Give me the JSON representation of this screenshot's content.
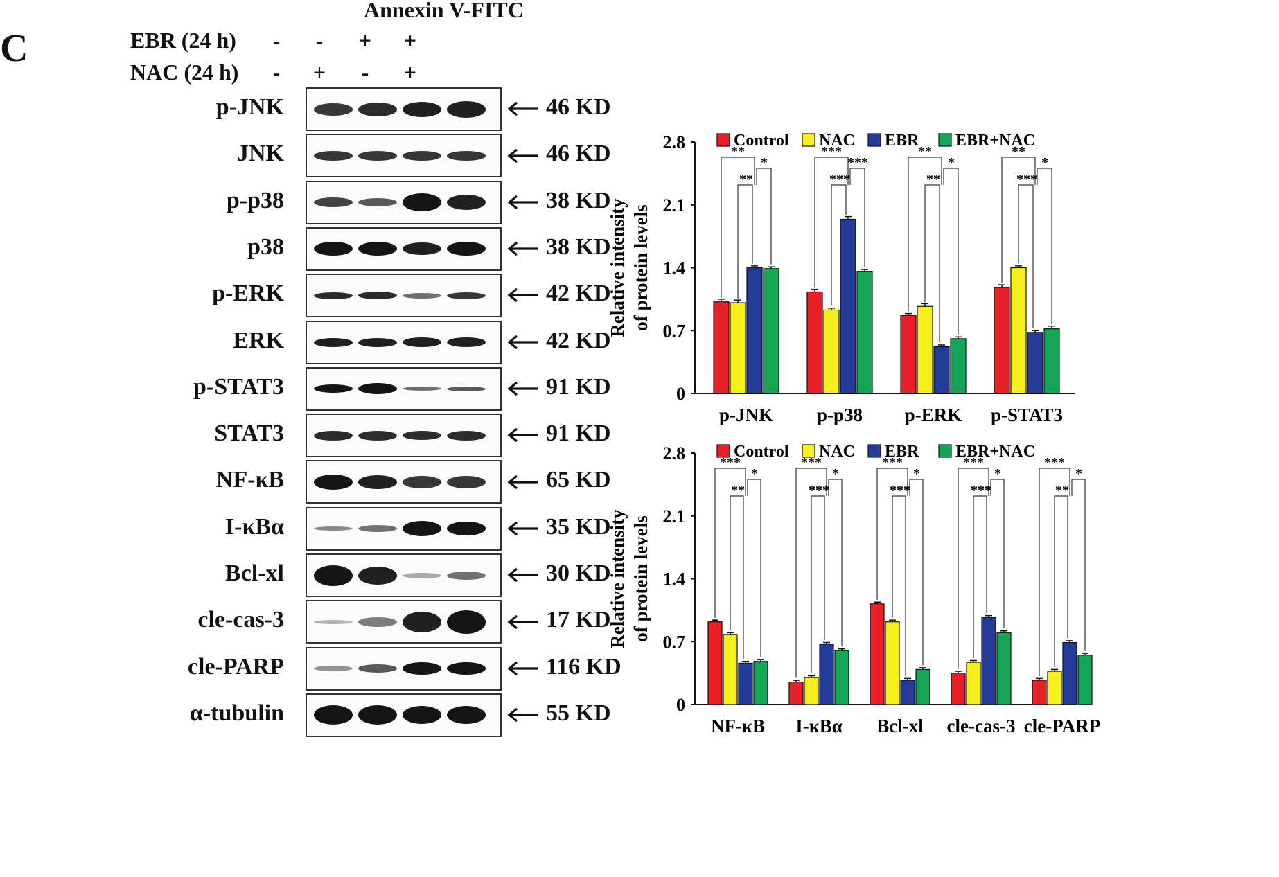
{
  "panel_label": "C",
  "blot": {
    "title": "Annexin V-FITC",
    "conditions": [
      {
        "label": "EBR  (24 h)",
        "signs": [
          "-",
          "-",
          "+",
          "+"
        ]
      },
      {
        "label": "NAC  (24 h)",
        "signs": [
          "-",
          "+",
          "-",
          "+"
        ]
      }
    ],
    "rows": [
      {
        "protein": "p-JNK",
        "mw": "46 KD"
      },
      {
        "protein": "JNK",
        "mw": "46 KD"
      },
      {
        "protein": "p-p38",
        "mw": "38 KD"
      },
      {
        "protein": "p38",
        "mw": "38 KD"
      },
      {
        "protein": "p-ERK",
        "mw": "42 KD"
      },
      {
        "protein": "ERK",
        "mw": "42 KD"
      },
      {
        "protein": "p-STAT3",
        "mw": "91 KD"
      },
      {
        "protein": "STAT3",
        "mw": "91 KD"
      },
      {
        "protein": "NF-κB",
        "mw": "65 KD"
      },
      {
        "protein": "I-κBα",
        "mw": "35 KD"
      },
      {
        "protein": "Bcl-xl",
        "mw": "30 KD"
      },
      {
        "protein": "cle-cas-3",
        "mw": "17 KD"
      },
      {
        "protein": "cle-PARP",
        "mw": "116 KD"
      },
      {
        "protein": "α-tubulin",
        "mw": "55 KD"
      }
    ]
  },
  "colors": {
    "Control": "#e8202a",
    "NAC": "#f7ef1a",
    "EBR": "#243c97",
    "EBR+NAC": "#14a556"
  },
  "chart_data": [
    {
      "type": "bar",
      "ylabel": "Relative intensity of protein levels",
      "ylabel_lines": [
        "Relative intensity",
        "of  protein levels"
      ],
      "ylim": [
        0,
        2.8
      ],
      "yticks": [
        "0",
        "0.7",
        "1.4",
        "2.1",
        "2.8"
      ],
      "legend": [
        "Control",
        "NAC",
        "EBR",
        "EBR+NAC"
      ],
      "categories": [
        "p-JNK",
        "p-p38",
        "p-ERK",
        "p-STAT3"
      ],
      "series": [
        {
          "name": "Control",
          "values": [
            1.02,
            1.13,
            0.87,
            1.18
          ]
        },
        {
          "name": "NAC",
          "values": [
            1.01,
            0.93,
            0.97,
            1.4
          ]
        },
        {
          "name": "EBR",
          "values": [
            1.4,
            1.94,
            0.52,
            0.68
          ]
        },
        {
          "name": "EBR+NAC",
          "values": [
            1.39,
            1.36,
            0.61,
            0.72
          ]
        }
      ],
      "error": [
        [
          0.03,
          0.03,
          0.02,
          0.03
        ],
        [
          0.03,
          0.02,
          0.03,
          0.02
        ],
        [
          0.02,
          0.03,
          0.02,
          0.02
        ],
        [
          0.02,
          0.02,
          0.02,
          0.03
        ]
      ],
      "significance": [
        {
          "outer": "**",
          "inner1": "**",
          "inner2": "*"
        },
        {
          "outer": "***",
          "inner1": "***",
          "inner2": "***"
        },
        {
          "outer": "**",
          "inner1": "**",
          "inner2": "*"
        },
        {
          "outer": "**",
          "inner1": "***",
          "inner2": "*"
        }
      ]
    },
    {
      "type": "bar",
      "ylabel": "Relative intensity of protein levels",
      "ylabel_lines": [
        "Relative intensity",
        "of  protein levels"
      ],
      "ylim": [
        0,
        2.8
      ],
      "yticks": [
        "0",
        "0.7",
        "1.4",
        "2.1",
        "2.8"
      ],
      "legend": [
        "Control",
        "NAC",
        "EBR",
        "EBR+NAC"
      ],
      "categories": [
        "NF-κB",
        "I-κBα",
        "Bcl-xl",
        "cle-cas-3",
        "cle-PARP"
      ],
      "series": [
        {
          "name": "Control",
          "values": [
            0.92,
            0.25,
            1.12,
            0.35,
            0.27
          ]
        },
        {
          "name": "NAC",
          "values": [
            0.78,
            0.3,
            0.92,
            0.47,
            0.37
          ]
        },
        {
          "name": "EBR",
          "values": [
            0.46,
            0.67,
            0.27,
            0.97,
            0.69
          ]
        },
        {
          "name": "EBR+NAC",
          "values": [
            0.48,
            0.6,
            0.39,
            0.8,
            0.55
          ]
        }
      ],
      "error": [
        [
          0.02,
          0.02,
          0.02,
          0.02,
          0.02
        ],
        [
          0.02,
          0.02,
          0.02,
          0.02,
          0.02
        ],
        [
          0.02,
          0.02,
          0.02,
          0.02,
          0.02
        ],
        [
          0.02,
          0.02,
          0.02,
          0.02,
          0.02
        ]
      ],
      "significance": [
        {
          "outer": "***",
          "inner1": "**",
          "inner2": "*"
        },
        {
          "outer": "***",
          "inner1": "***",
          "inner2": "*"
        },
        {
          "outer": "***",
          "inner1": "***",
          "inner2": "*"
        },
        {
          "outer": "***",
          "inner1": "***",
          "inner2": "*"
        },
        {
          "outer": "***",
          "inner1": "**",
          "inner2": "*"
        }
      ]
    }
  ]
}
